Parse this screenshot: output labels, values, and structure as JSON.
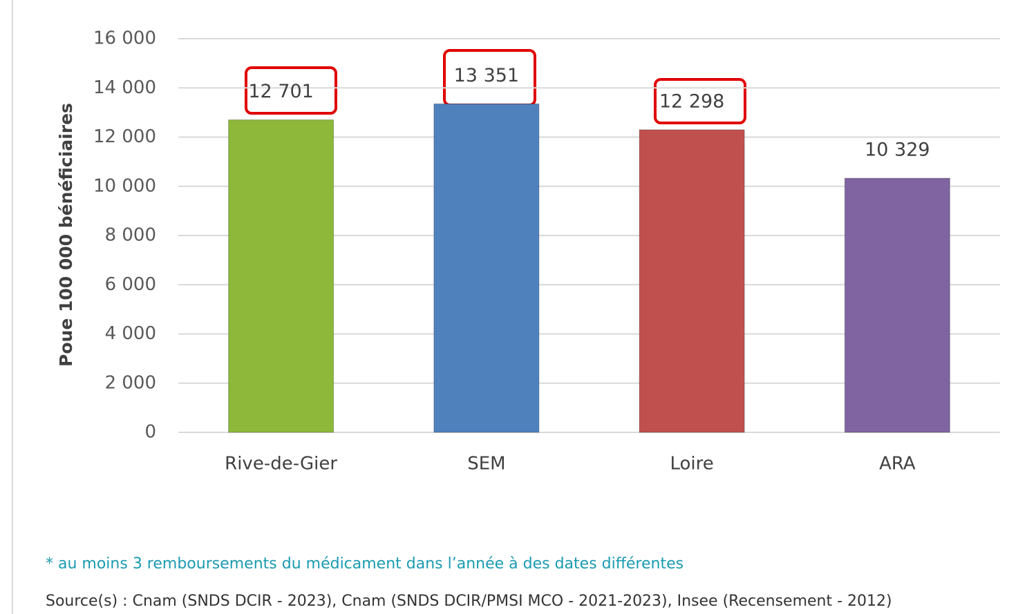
{
  "chart_data": {
    "type": "bar",
    "y_axis_label": "Poue 100 000 bénéficiaires",
    "categories": [
      "Rive-de-Gier",
      "SEM",
      "Loire",
      "ARA"
    ],
    "values": [
      12701,
      13351,
      12298,
      10329
    ],
    "value_labels": [
      "12 701",
      "13 351",
      "12 298",
      "10 329"
    ],
    "colors": [
      "#8db83a",
      "#4f81bd",
      "#c0504d",
      "#8064a2"
    ],
    "ylim": [
      0,
      16000
    ],
    "yticks": [
      0,
      {
        "value": 2000,
        "label": "2 000"
      },
      {
        "value": 4000,
        "label": "4 000"
      },
      {
        "value": 6000,
        "label": "6 000"
      },
      {
        "value": 8000,
        "label": "8 000"
      },
      {
        "value": 10000,
        "label": "10 000"
      },
      {
        "value": 12000,
        "label": "12 000"
      },
      {
        "value": 14000,
        "label": "14 000"
      },
      {
        "value": 16000,
        "label": "16 000"
      }
    ],
    "grid": true,
    "footnote": "* au moins 3 remboursements du médicament dans l’année à des dates différentes",
    "source": "Source(s) : Cnam (SNDS DCIR - 2023), Cnam (SNDS DCIR/PMSI MCO - 2021-2023), Insee (Recensement - 2012)"
  }
}
